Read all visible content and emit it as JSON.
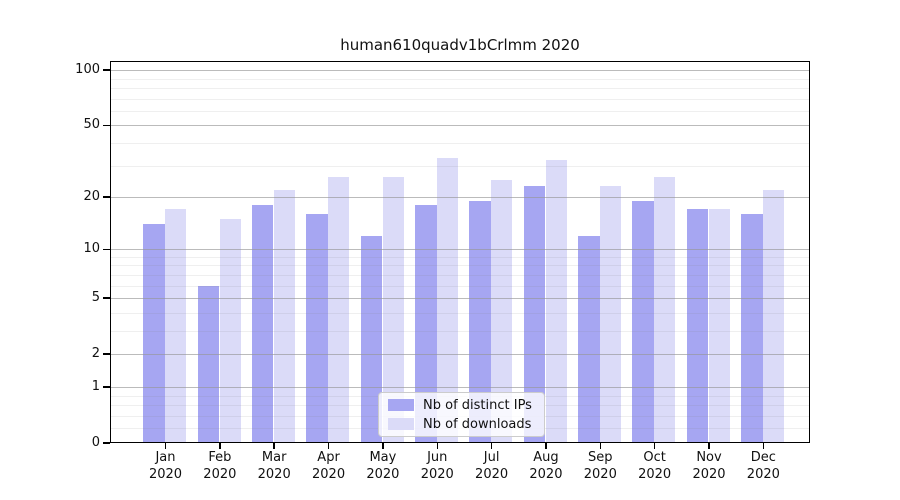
{
  "title": "human610quadv1bCrlmm 2020",
  "colors": {
    "ips_bar": "#a6a6f2",
    "downloads_bar": "#dbdbf8",
    "grid_major": "rgba(150,150,150,0.65)",
    "grid_minor": "rgba(130,130,130,0.13)",
    "axis": "#000000",
    "text": "#111111",
    "legend_bg": "rgba(255,255,255,0.8)",
    "legend_border": "#cccccc"
  },
  "legend": {
    "items": [
      {
        "label": "Nb of distinct IPs",
        "series": "ips"
      },
      {
        "label": "Nb of downloads",
        "series": "downloads"
      }
    ]
  },
  "chart_data": {
    "type": "bar",
    "title": "human610quadv1bCrlmm 2020",
    "scale": "log1p",
    "grid": true,
    "legend_position": "bottom-center",
    "categories": [
      "Jan",
      "Feb",
      "Mar",
      "Apr",
      "May",
      "Jun",
      "Jul",
      "Aug",
      "Sep",
      "Oct",
      "Nov",
      "Dec"
    ],
    "year_label": "2020",
    "series": [
      {
        "name": "Nb of distinct IPs",
        "values": [
          14,
          6,
          18,
          16,
          12,
          18,
          19,
          23,
          12,
          19,
          17,
          16
        ]
      },
      {
        "name": "Nb of downloads",
        "values": [
          17,
          15,
          22,
          26,
          26,
          33,
          25,
          32,
          23,
          26,
          17,
          22
        ]
      }
    ],
    "ytick_labels": [
      "100",
      "50",
      "20",
      "10",
      "5",
      "2",
      "1",
      "0"
    ],
    "ytick_values": [
      100,
      50,
      20,
      10,
      5,
      2,
      1,
      0
    ],
    "major_gridlines": [
      1,
      2,
      5,
      10,
      20,
      50,
      100
    ],
    "minor_gridlines": [
      0.2,
      0.4,
      0.6,
      0.8,
      3,
      4,
      6,
      7,
      8,
      9,
      30,
      40,
      60,
      70,
      80,
      90
    ],
    "ylim": [
      0,
      112
    ]
  }
}
